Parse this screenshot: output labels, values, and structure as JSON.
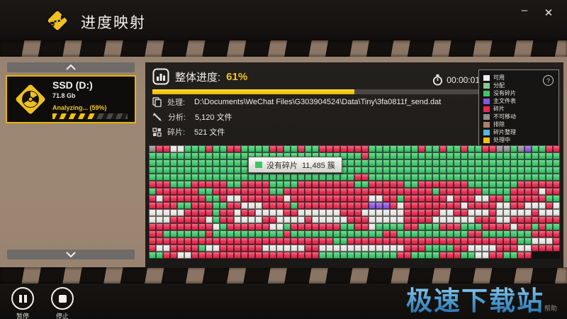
{
  "window": {
    "title": "进度映射",
    "minimize_glyph": "–",
    "close_glyph": "✕"
  },
  "sidebar": {
    "drive": {
      "name": "SSD (D:)",
      "size": "71.8 Gb",
      "status": "Analyzing... (59%)",
      "progress_pct": 59
    }
  },
  "main": {
    "overall_label": "整体进度:",
    "overall_value": "61%",
    "progress_pct": 61,
    "timer": "00:00:01",
    "info": [
      {
        "label": "处理:",
        "value": "D:\\Documents\\WeChat Files\\G303904524\\Data\\Tiny\\3fa0811f_send.dat"
      },
      {
        "label": "分析:",
        "value": "5,120 文件"
      },
      {
        "label": "碎片:",
        "value": "521 文件"
      }
    ],
    "tooltip": {
      "label": "没有碎片",
      "value": "11,485 簇"
    }
  },
  "legend": {
    "help_glyph": "?",
    "items": [
      {
        "label": "可用",
        "color": "#f1f0ee"
      },
      {
        "label": "分配",
        "color": "#84c98e"
      },
      {
        "label": "没有碎片",
        "color": "#3ec56a"
      },
      {
        "label": "主文件表",
        "color": "#8a55e0"
      },
      {
        "label": "碎片",
        "color": "#e62a4e"
      },
      {
        "label": "不可移动",
        "color": "#8f8e8c"
      },
      {
        "label": "排除",
        "color": "#b08066"
      },
      {
        "label": "碎片整理",
        "color": "#55b8e0"
      },
      {
        "label": "处理中",
        "color": "#f4c20d"
      }
    ]
  },
  "map": {
    "colors": {
      "G": "#3ec56a",
      "R": "#e62a4e",
      "W": "#e9e7e3",
      "A": "#8f8e8c",
      "P": "#8a55e0"
    },
    "rows": [
      "ARRWWGGGRGGRRGGGGRRGGRGGRRRRRRRGGGGGGGRGGRGGRGGRRAAGAPGGRR",
      "GGGGGGGGGGGGGGGGGGGGGGGGGGGGGGRGGGGGGGGGGGGGGGGGGGGGGGGGG",
      "GGGGGGGGGGGGGGGGGGGGGGGGGGGGGGGGGGGGGGGGGGGGGGGGGGGGGGGGG",
      "GGGGGGGGGGGGGGGGGGGGGGGGGGGGGGGGGGGGGGGGGGGGGGGGGGGGGGGGG",
      "GGGGGGGGGGGGGGGGGGGGGGGGGGGGGGGGRRGGGGGGGGGGGGGGGGGGGGGGG",
      "GGGGRRRGGGRRRRRGGRRRRGGGGRRRRRRRRGGRRRRRGGRRRRRRRGGGGGGGRR",
      "RRRRGRRRRRRGGRRRRRRRRGGRRRRRRRRRRRRRRRRRRRRRGRRRRRRGGGGRRR",
      "RWRRRWRRRRRRGGRWWRRRRRRWRRRRRRRRRRRWWRRGRRRRRRWRRRWWRRGRRR",
      "RRGGRRRRGGRRRGGRRWWWRRRRGRRRRRRRRRRPPPRWRRRRRRRRWRRRRWWRRW",
      "WWRWWWWWWRRRRGRRWRRWWWWRRWWWWWWRRRWWWWWWRRRRRWWRRWWWRWWWWW",
      "RWWWWWWRRRRRWGRRWWWWRRWWWWRWWWWWRRRWWWWWRRRRWWWWWWRRRWWRRR",
      "RRRRRRRRRRRRRWGRRRRRRWWGRRRRRRRGGRRWGGGGRRGGGRRRGGGRRRRWRR",
      "GRGGRRGGGGGGRGGGGGGGGGGRGGGGGGGGGGGGGRRGGGGGGGGGGRRGGGGGGG",
      "RRRRRRRRRRRRRRRRRRRRRRRRRRRRRRGGRRRRRRRRRRRRRRRRRRRRRRRRGG",
      "WWWRRWWRRRRGWWRRRRRRWWWWWWRRWWWWWWWWWWWWRRRGGGGRRWWWWRRRWW",
      "RRRRGGRRWWRRRRRRRRRRRRRRRRRRGGGGGGGGGGGRRGGGGRRRGGWWRRGGRR"
    ]
  },
  "footer": {
    "pause": "暂停",
    "stop": "停止",
    "help": "帮助",
    "watermark": "极速下载站"
  }
}
